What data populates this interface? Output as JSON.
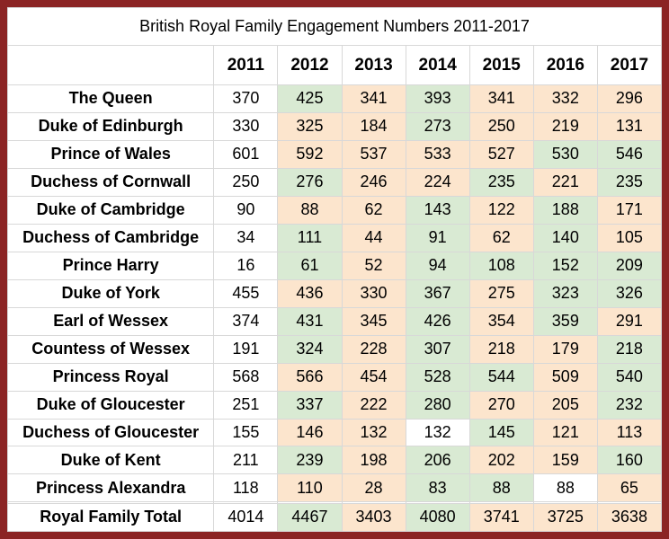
{
  "colors": {
    "increase_fill": "#d9ead3",
    "decrease_fill": "#fce5cd",
    "neutral_fill": "#ffffff",
    "frame_border": "#8b2424",
    "gridline": "#d8d8d8",
    "text": "#000000"
  },
  "chart_data": {
    "type": "table",
    "title": "British Royal Family Engagement Numbers 2011-2017",
    "columns": [
      "",
      "2011",
      "2012",
      "2013",
      "2014",
      "2015",
      "2016",
      "2017"
    ],
    "color_rule": "cell fill: green when value increased vs previous year, orange when decreased, white when first year or unchanged",
    "rows": [
      {
        "label": "The Queen",
        "values": [
          370,
          425,
          341,
          393,
          341,
          332,
          296
        ]
      },
      {
        "label": "Duke of Edinburgh",
        "values": [
          330,
          325,
          184,
          273,
          250,
          219,
          131
        ]
      },
      {
        "label": "Prince of Wales",
        "values": [
          601,
          592,
          537,
          533,
          527,
          530,
          546
        ]
      },
      {
        "label": "Duchess of Cornwall",
        "values": [
          250,
          276,
          246,
          224,
          235,
          221,
          235
        ]
      },
      {
        "label": "Duke of Cambridge",
        "values": [
          90,
          88,
          62,
          143,
          122,
          188,
          171
        ]
      },
      {
        "label": "Duchess of Cambridge",
        "values": [
          34,
          111,
          44,
          91,
          62,
          140,
          105
        ]
      },
      {
        "label": "Prince Harry",
        "values": [
          16,
          61,
          52,
          94,
          108,
          152,
          209
        ]
      },
      {
        "label": "Duke of York",
        "values": [
          455,
          436,
          330,
          367,
          275,
          323,
          326
        ]
      },
      {
        "label": "Earl of Wessex",
        "values": [
          374,
          431,
          345,
          426,
          354,
          359,
          291
        ]
      },
      {
        "label": "Countess of Wessex",
        "values": [
          191,
          324,
          228,
          307,
          218,
          179,
          218
        ]
      },
      {
        "label": "Princess Royal",
        "values": [
          568,
          566,
          454,
          528,
          544,
          509,
          540
        ]
      },
      {
        "label": "Duke of Gloucester",
        "values": [
          251,
          337,
          222,
          280,
          270,
          205,
          232
        ]
      },
      {
        "label": "Duchess of Gloucester",
        "values": [
          155,
          146,
          132,
          132,
          145,
          121,
          113
        ]
      },
      {
        "label": "Duke of Kent",
        "values": [
          211,
          239,
          198,
          206,
          202,
          159,
          160
        ]
      },
      {
        "label": "Princess Alexandra",
        "values": [
          118,
          110,
          28,
          83,
          88,
          88,
          65
        ]
      },
      {
        "label": "",
        "spacer": true,
        "values": [
          "",
          "",
          "",
          "",
          "",
          "",
          ""
        ]
      },
      {
        "label": "Royal Family Total",
        "total": true,
        "values": [
          4014,
          4467,
          3403,
          4080,
          3741,
          3725,
          3638
        ]
      }
    ]
  }
}
